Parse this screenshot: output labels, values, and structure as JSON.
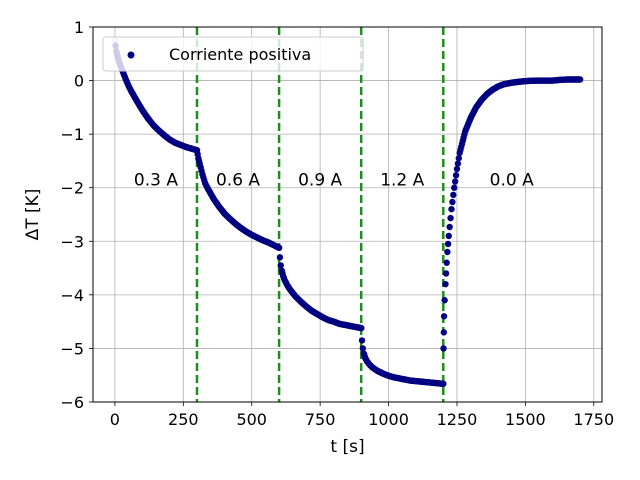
{
  "chart_data": {
    "type": "scatter",
    "xlabel": "t [s]",
    "ylabel": "ΔT [K]",
    "xlim": [
      -80,
      1780
    ],
    "ylim": [
      -6,
      1
    ],
    "xticks": [
      0,
      250,
      500,
      750,
      1000,
      1250,
      1500,
      1750
    ],
    "yticks": [
      1,
      0,
      -1,
      -2,
      -3,
      -4,
      -5,
      -6
    ],
    "grid": true,
    "legend": {
      "placement": "top-left",
      "label": "Corriente positiva"
    },
    "colors": {
      "series": "#000080",
      "vlines": "#228B22",
      "grid": "#b0b0b0"
    },
    "vlines": [
      300,
      600,
      900,
      1200
    ],
    "annotations": [
      {
        "text": "0.3 A",
        "x": 150,
        "y": -1.85
      },
      {
        "text": "0.6 A",
        "x": 450,
        "y": -1.85
      },
      {
        "text": "0.9 A",
        "x": 750,
        "y": -1.85
      },
      {
        "text": "1.2 A",
        "x": 1050,
        "y": -1.85
      },
      {
        "text": "0.0 A",
        "x": 1450,
        "y": -1.85
      }
    ],
    "series": [
      {
        "name": "Corriente positiva",
        "x": [
          0,
          5,
          10,
          15,
          20,
          30,
          40,
          50,
          60,
          80,
          100,
          120,
          140,
          160,
          180,
          200,
          220,
          240,
          260,
          280,
          300,
          300,
          305,
          310,
          320,
          330,
          340,
          360,
          380,
          400,
          420,
          440,
          460,
          480,
          500,
          520,
          540,
          560,
          580,
          600,
          600,
          603,
          606,
          610,
          615,
          620,
          630,
          640,
          660,
          680,
          700,
          720,
          740,
          760,
          780,
          800,
          820,
          840,
          860,
          880,
          900,
          900,
          903,
          906,
          910,
          915,
          920,
          930,
          940,
          960,
          980,
          1000,
          1020,
          1040,
          1060,
          1080,
          1100,
          1120,
          1140,
          1160,
          1180,
          1200,
          1200,
          1201,
          1202,
          1203,
          1205,
          1208,
          1210,
          1215,
          1220,
          1230,
          1240,
          1250,
          1260,
          1280,
          1300,
          1320,
          1340,
          1360,
          1380,
          1400,
          1420,
          1450,
          1480,
          1500,
          1520,
          1550,
          1580,
          1600,
          1620,
          1650,
          1680,
          1700
        ],
        "y": [
          0.75,
          0.55,
          0.45,
          0.35,
          0.28,
          0.15,
          0.02,
          -0.1,
          -0.2,
          -0.38,
          -0.55,
          -0.7,
          -0.83,
          -0.93,
          -1.02,
          -1.1,
          -1.16,
          -1.2,
          -1.24,
          -1.27,
          -1.3,
          -1.3,
          -1.45,
          -1.55,
          -1.75,
          -1.92,
          -2.02,
          -2.2,
          -2.35,
          -2.48,
          -2.58,
          -2.67,
          -2.75,
          -2.82,
          -2.88,
          -2.93,
          -2.98,
          -3.02,
          -3.07,
          -3.12,
          -3.12,
          -3.3,
          -3.45,
          -3.55,
          -3.65,
          -3.72,
          -3.82,
          -3.9,
          -4.03,
          -4.13,
          -4.22,
          -4.3,
          -4.36,
          -4.42,
          -4.47,
          -4.5,
          -4.54,
          -4.56,
          -4.58,
          -4.6,
          -4.62,
          -4.62,
          -4.85,
          -5.0,
          -5.1,
          -5.18,
          -5.23,
          -5.3,
          -5.35,
          -5.42,
          -5.47,
          -5.51,
          -5.54,
          -5.56,
          -5.58,
          -5.6,
          -5.61,
          -5.62,
          -5.63,
          -5.64,
          -5.65,
          -5.66,
          -5.66,
          -5.0,
          -4.7,
          -4.4,
          -4.1,
          -3.8,
          -3.6,
          -3.2,
          -2.9,
          -2.4,
          -2.0,
          -1.65,
          -1.35,
          -0.95,
          -0.7,
          -0.5,
          -0.36,
          -0.25,
          -0.17,
          -0.11,
          -0.07,
          -0.04,
          -0.02,
          -0.01,
          -0.005,
          0.0,
          0.0,
          0.0,
          0.01,
          0.02,
          0.02,
          0.02
        ]
      }
    ]
  }
}
